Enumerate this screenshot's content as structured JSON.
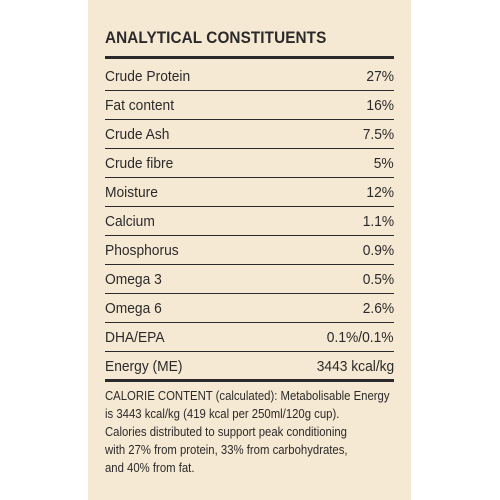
{
  "panel": {
    "title": "ANALYTICAL CONSTITUENTS",
    "rows": [
      {
        "name": "Crude Protein",
        "value": "27%"
      },
      {
        "name": "Fat content",
        "value": "16%"
      },
      {
        "name": "Crude Ash",
        "value": "7.5%"
      },
      {
        "name": "Crude fibre",
        "value": "5%"
      },
      {
        "name": "Moisture",
        "value": "12%"
      },
      {
        "name": "Calcium",
        "value": "1.1%"
      },
      {
        "name": "Phosphorus",
        "value": "0.9%"
      },
      {
        "name": "Omega 3",
        "value": "0.5%"
      },
      {
        "name": "Omega 6",
        "value": "2.6%"
      },
      {
        "name": "DHA/EPA",
        "value": "0.1%/0.1%"
      },
      {
        "name": "Energy (ME)",
        "value": "3443 kcal/kg"
      }
    ],
    "note_lines": [
      "CALORIE CONTENT (calculated): Metabolisable Energy",
      "is 3443 kcal/kg (419 kcal per 250ml/120g cup).",
      "Calories distributed to support peak conditioning",
      "with 27% from protein, 33% from carbohydrates,",
      "and 40% from fat."
    ]
  },
  "colors": {
    "background": "#f6e9d3",
    "text": "#2b2a2a"
  }
}
